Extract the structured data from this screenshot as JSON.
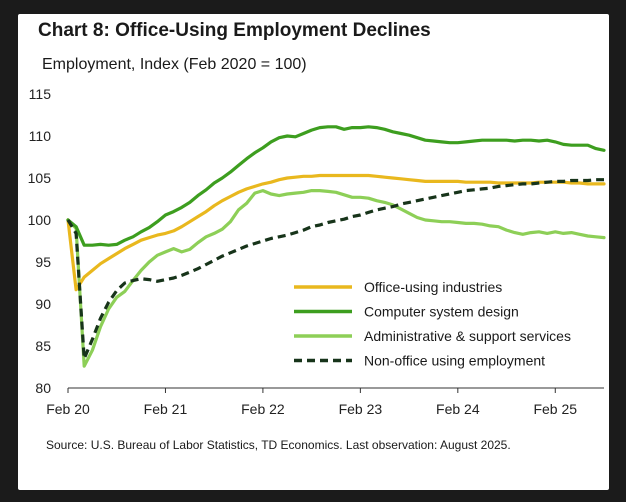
{
  "chart_data": {
    "type": "line",
    "title": "Chart 8: Office-Using Employment Declines",
    "ylabel": "Employment, Index (Feb 2020 = 100)",
    "xlabel": "",
    "ylim": [
      80,
      115
    ],
    "yticks": [
      80,
      85,
      90,
      95,
      100,
      105,
      110,
      115
    ],
    "xticks": [
      {
        "label": "Feb 20",
        "t": 0
      },
      {
        "label": "Feb 21",
        "t": 12
      },
      {
        "label": "Feb 22",
        "t": 24
      },
      {
        "label": "Feb 23",
        "t": 36
      },
      {
        "label": "Feb 24",
        "t": 48
      },
      {
        "label": "Feb 25",
        "t": 60
      }
    ],
    "xlim": [
      0,
      66
    ],
    "source": "Source: U.S. Bureau of Labor Statistics, TD Economics. Last observation: August 2025.",
    "series": [
      {
        "name": "Office-using industries",
        "color": "#e9b81e",
        "dashed": false,
        "points": [
          [
            0,
            100
          ],
          [
            1,
            91.7
          ],
          [
            2,
            93.2
          ],
          [
            3,
            94
          ],
          [
            4,
            94.8
          ],
          [
            5,
            95.4
          ],
          [
            6,
            96
          ],
          [
            7,
            96.6
          ],
          [
            8,
            97.1
          ],
          [
            9,
            97.6
          ],
          [
            10,
            97.9
          ],
          [
            11,
            98.2
          ],
          [
            12,
            98.4
          ],
          [
            13,
            98.7
          ],
          [
            14,
            99.2
          ],
          [
            15,
            99.8
          ],
          [
            16,
            100.4
          ],
          [
            17,
            101
          ],
          [
            18,
            101.7
          ],
          [
            19,
            102.3
          ],
          [
            20,
            102.8
          ],
          [
            21,
            103.3
          ],
          [
            22,
            103.7
          ],
          [
            23,
            104
          ],
          [
            24,
            104.3
          ],
          [
            25,
            104.5
          ],
          [
            26,
            104.8
          ],
          [
            27,
            105
          ],
          [
            28,
            105.1
          ],
          [
            29,
            105.2
          ],
          [
            30,
            105.2
          ],
          [
            31,
            105.3
          ],
          [
            32,
            105.3
          ],
          [
            33,
            105.3
          ],
          [
            34,
            105.3
          ],
          [
            35,
            105.3
          ],
          [
            36,
            105.3
          ],
          [
            37,
            105.3
          ],
          [
            38,
            105.2
          ],
          [
            39,
            105.1
          ],
          [
            40,
            105
          ],
          [
            41,
            104.9
          ],
          [
            42,
            104.8
          ],
          [
            43,
            104.7
          ],
          [
            44,
            104.6
          ],
          [
            45,
            104.6
          ],
          [
            46,
            104.6
          ],
          [
            47,
            104.6
          ],
          [
            48,
            104.6
          ],
          [
            49,
            104.5
          ],
          [
            50,
            104.5
          ],
          [
            51,
            104.5
          ],
          [
            52,
            104.5
          ],
          [
            53,
            104.4
          ],
          [
            54,
            104.4
          ],
          [
            55,
            104.4
          ],
          [
            56,
            104.4
          ],
          [
            57,
            104.4
          ],
          [
            58,
            104.5
          ],
          [
            59,
            104.5
          ],
          [
            60,
            104.5
          ],
          [
            61,
            104.5
          ],
          [
            62,
            104.4
          ],
          [
            63,
            104.4
          ],
          [
            64,
            104.3
          ],
          [
            65,
            104.3
          ],
          [
            66,
            104.3
          ]
        ]
      },
      {
        "name": "Computer system design",
        "color": "#3d9e1f",
        "dashed": false,
        "points": [
          [
            0,
            100
          ],
          [
            1,
            99.2
          ],
          [
            2,
            97
          ],
          [
            3,
            97
          ],
          [
            4,
            97.1
          ],
          [
            5,
            97
          ],
          [
            6,
            97.1
          ],
          [
            7,
            97.6
          ],
          [
            8,
            98
          ],
          [
            9,
            98.6
          ],
          [
            10,
            99.1
          ],
          [
            11,
            99.8
          ],
          [
            12,
            100.6
          ],
          [
            13,
            101
          ],
          [
            14,
            101.5
          ],
          [
            15,
            102.1
          ],
          [
            16,
            102.9
          ],
          [
            17,
            103.6
          ],
          [
            18,
            104.4
          ],
          [
            19,
            105
          ],
          [
            20,
            105.7
          ],
          [
            21,
            106.5
          ],
          [
            22,
            107.3
          ],
          [
            23,
            108
          ],
          [
            24,
            108.6
          ],
          [
            25,
            109.3
          ],
          [
            26,
            109.8
          ],
          [
            27,
            110
          ],
          [
            28,
            109.9
          ],
          [
            29,
            110.3
          ],
          [
            30,
            110.7
          ],
          [
            31,
            111
          ],
          [
            32,
            111.1
          ],
          [
            33,
            111.1
          ],
          [
            34,
            110.8
          ],
          [
            35,
            111
          ],
          [
            36,
            111
          ],
          [
            37,
            111.1
          ],
          [
            38,
            111
          ],
          [
            39,
            110.8
          ],
          [
            40,
            110.5
          ],
          [
            41,
            110.3
          ],
          [
            42,
            110.1
          ],
          [
            43,
            109.8
          ],
          [
            44,
            109.5
          ],
          [
            45,
            109.4
          ],
          [
            46,
            109.3
          ],
          [
            47,
            109.2
          ],
          [
            48,
            109.2
          ],
          [
            49,
            109.3
          ],
          [
            50,
            109.4
          ],
          [
            51,
            109.5
          ],
          [
            52,
            109.5
          ],
          [
            53,
            109.5
          ],
          [
            54,
            109.5
          ],
          [
            55,
            109.4
          ],
          [
            56,
            109.5
          ],
          [
            57,
            109.5
          ],
          [
            58,
            109.4
          ],
          [
            59,
            109.5
          ],
          [
            60,
            109.3
          ],
          [
            61,
            109
          ],
          [
            62,
            108.9
          ],
          [
            63,
            108.9
          ],
          [
            64,
            108.9
          ],
          [
            65,
            108.5
          ],
          [
            66,
            108.3
          ]
        ]
      },
      {
        "name": "Administrative & support services",
        "color": "#8dcf57",
        "dashed": false,
        "points": [
          [
            0,
            100
          ],
          [
            1,
            99
          ],
          [
            2,
            82.6
          ],
          [
            3,
            84.5
          ],
          [
            4,
            87.3
          ],
          [
            5,
            89.4
          ],
          [
            6,
            90.8
          ],
          [
            7,
            91.5
          ],
          [
            8,
            92.8
          ],
          [
            9,
            94
          ],
          [
            10,
            95
          ],
          [
            11,
            95.8
          ],
          [
            12,
            96.2
          ],
          [
            13,
            96.6
          ],
          [
            14,
            96.2
          ],
          [
            15,
            96.5
          ],
          [
            16,
            97.3
          ],
          [
            17,
            98
          ],
          [
            18,
            98.4
          ],
          [
            19,
            98.9
          ],
          [
            20,
            99.8
          ],
          [
            21,
            101.2
          ],
          [
            22,
            102
          ],
          [
            23,
            103.2
          ],
          [
            24,
            103.5
          ],
          [
            25,
            103.1
          ],
          [
            26,
            102.9
          ],
          [
            27,
            103.1
          ],
          [
            28,
            103.2
          ],
          [
            29,
            103.3
          ],
          [
            30,
            103.5
          ],
          [
            31,
            103.5
          ],
          [
            32,
            103.4
          ],
          [
            33,
            103.3
          ],
          [
            34,
            103
          ],
          [
            35,
            102.7
          ],
          [
            36,
            102.7
          ],
          [
            37,
            102.6
          ],
          [
            38,
            102.3
          ],
          [
            39,
            102.1
          ],
          [
            40,
            101.8
          ],
          [
            41,
            101.3
          ],
          [
            42,
            100.8
          ],
          [
            43,
            100.3
          ],
          [
            44,
            100
          ],
          [
            45,
            99.9
          ],
          [
            46,
            99.8
          ],
          [
            47,
            99.8
          ],
          [
            48,
            99.7
          ],
          [
            49,
            99.6
          ],
          [
            50,
            99.6
          ],
          [
            51,
            99.5
          ],
          [
            52,
            99.3
          ],
          [
            53,
            99.2
          ],
          [
            54,
            98.8
          ],
          [
            55,
            98.5
          ],
          [
            56,
            98.3
          ],
          [
            57,
            98.5
          ],
          [
            58,
            98.6
          ],
          [
            59,
            98.4
          ],
          [
            60,
            98.6
          ],
          [
            61,
            98.4
          ],
          [
            62,
            98.5
          ],
          [
            63,
            98.3
          ],
          [
            64,
            98.1
          ],
          [
            65,
            98
          ],
          [
            66,
            97.9
          ]
        ]
      },
      {
        "name": "Non-office using employment",
        "color": "#17341a",
        "dashed": true,
        "points": [
          [
            0,
            100
          ],
          [
            1,
            98.4
          ],
          [
            2,
            83.5
          ],
          [
            3,
            85.8
          ],
          [
            4,
            88.3
          ],
          [
            5,
            90.2
          ],
          [
            6,
            91.6
          ],
          [
            7,
            92.5
          ],
          [
            8,
            92.8
          ],
          [
            9,
            93
          ],
          [
            10,
            92.9
          ],
          [
            11,
            92.7
          ],
          [
            12,
            92.9
          ],
          [
            13,
            93.1
          ],
          [
            14,
            93.4
          ],
          [
            15,
            93.8
          ],
          [
            16,
            94.2
          ],
          [
            17,
            94.7
          ],
          [
            18,
            95.2
          ],
          [
            19,
            95.7
          ],
          [
            20,
            96.1
          ],
          [
            21,
            96.5
          ],
          [
            22,
            96.9
          ],
          [
            23,
            97.2
          ],
          [
            24,
            97.5
          ],
          [
            25,
            97.8
          ],
          [
            26,
            98
          ],
          [
            27,
            98.2
          ],
          [
            28,
            98.5
          ],
          [
            29,
            98.8
          ],
          [
            30,
            99.2
          ],
          [
            31,
            99.4
          ],
          [
            32,
            99.7
          ],
          [
            33,
            99.9
          ],
          [
            34,
            100.1
          ],
          [
            35,
            100.4
          ],
          [
            36,
            100.6
          ],
          [
            37,
            100.9
          ],
          [
            38,
            101.2
          ],
          [
            39,
            101.4
          ],
          [
            40,
            101.6
          ],
          [
            41,
            101.9
          ],
          [
            42,
            102.1
          ],
          [
            43,
            102.3
          ],
          [
            44,
            102.5
          ],
          [
            45,
            102.7
          ],
          [
            46,
            102.9
          ],
          [
            47,
            103.1
          ],
          [
            48,
            103.3
          ],
          [
            49,
            103.5
          ],
          [
            50,
            103.6
          ],
          [
            51,
            103.7
          ],
          [
            52,
            103.8
          ],
          [
            53,
            104
          ],
          [
            54,
            104.1
          ],
          [
            55,
            104.2
          ],
          [
            56,
            104.3
          ],
          [
            57,
            104.3
          ],
          [
            58,
            104.4
          ],
          [
            59,
            104.5
          ],
          [
            60,
            104.6
          ],
          [
            61,
            104.6
          ],
          [
            62,
            104.7
          ],
          [
            63,
            104.7
          ],
          [
            64,
            104.7
          ],
          [
            65,
            104.8
          ],
          [
            66,
            104.8
          ]
        ]
      }
    ]
  }
}
